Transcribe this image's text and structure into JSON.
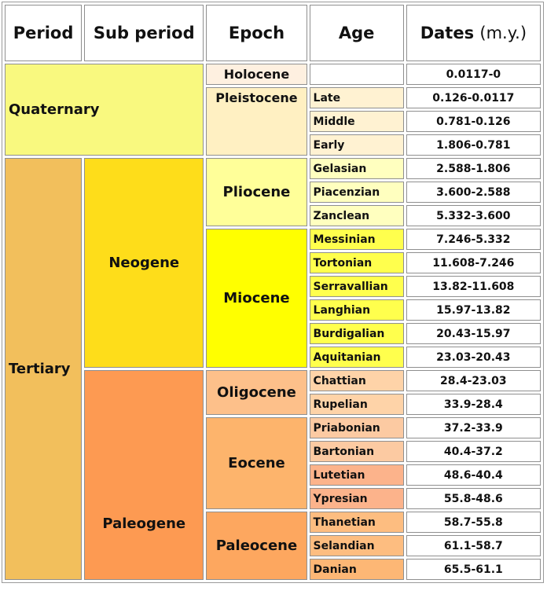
{
  "headers": {
    "period": "Period",
    "sub_period": "Sub period",
    "epoch": "Epoch",
    "age": "Age",
    "dates": "Dates",
    "dates_unit": "(m.y.)"
  },
  "periods": {
    "quaternary": "Quaternary",
    "tertiary": "Tertiary"
  },
  "sub_periods": {
    "neogene": "Neogene",
    "paleogene": "Paleogene"
  },
  "epochs": {
    "holocene": "Holocene",
    "pleistocene": "Pleistocene",
    "pliocene": "Pliocene",
    "miocene": "Miocene",
    "oligocene": "Oligocene",
    "eocene": "Eocene",
    "paleocene": "Paleocene"
  },
  "ages": [
    {
      "age": "",
      "dates": "0.0117-0"
    },
    {
      "age": "Late",
      "dates": "0.126-0.0117"
    },
    {
      "age": "Middle",
      "dates": "0.781-0.126"
    },
    {
      "age": "Early",
      "dates": "1.806-0.781"
    },
    {
      "age": "Gelasian",
      "dates": "2.588-1.806"
    },
    {
      "age": "Piacenzian",
      "dates": "3.600-2.588"
    },
    {
      "age": "Zanclean",
      "dates": "5.332-3.600"
    },
    {
      "age": "Messinian",
      "dates": "7.246-5.332"
    },
    {
      "age": "Tortonian",
      "dates": "11.608-7.246"
    },
    {
      "age": "Serravallian",
      "dates": "13.82-11.608"
    },
    {
      "age": "Langhian",
      "dates": "15.97-13.82"
    },
    {
      "age": "Burdigalian",
      "dates": "20.43-15.97"
    },
    {
      "age": "Aquitanian",
      "dates": "23.03-20.43"
    },
    {
      "age": "Chattian",
      "dates": "28.4-23.03"
    },
    {
      "age": "Rupelian",
      "dates": "33.9-28.4"
    },
    {
      "age": "Priabonian",
      "dates": "37.2-33.9"
    },
    {
      "age": "Bartonian",
      "dates": "40.4-37.2"
    },
    {
      "age": "Lutetian",
      "dates": "48.6-40.4"
    },
    {
      "age": "Ypresian",
      "dates": "55.8-48.6"
    },
    {
      "age": "Thanetian",
      "dates": "58.7-55.8"
    },
    {
      "age": "Selandian",
      "dates": "61.1-58.7"
    },
    {
      "age": "Danian",
      "dates": "65.5-61.1"
    }
  ],
  "colors": {
    "quaternary": "#f9f97f",
    "tertiary": "#f2bf5c",
    "neogene": "#fedd1a",
    "paleogene": "#fd9a52",
    "holocene": "#fef0e0",
    "pleistocene": "#fff0c2",
    "pliocene": "#ffff99",
    "miocene": "#ffff00",
    "oligocene": "#fdc08a",
    "eocene": "#fdb46c",
    "paleocene": "#fda75f"
  }
}
